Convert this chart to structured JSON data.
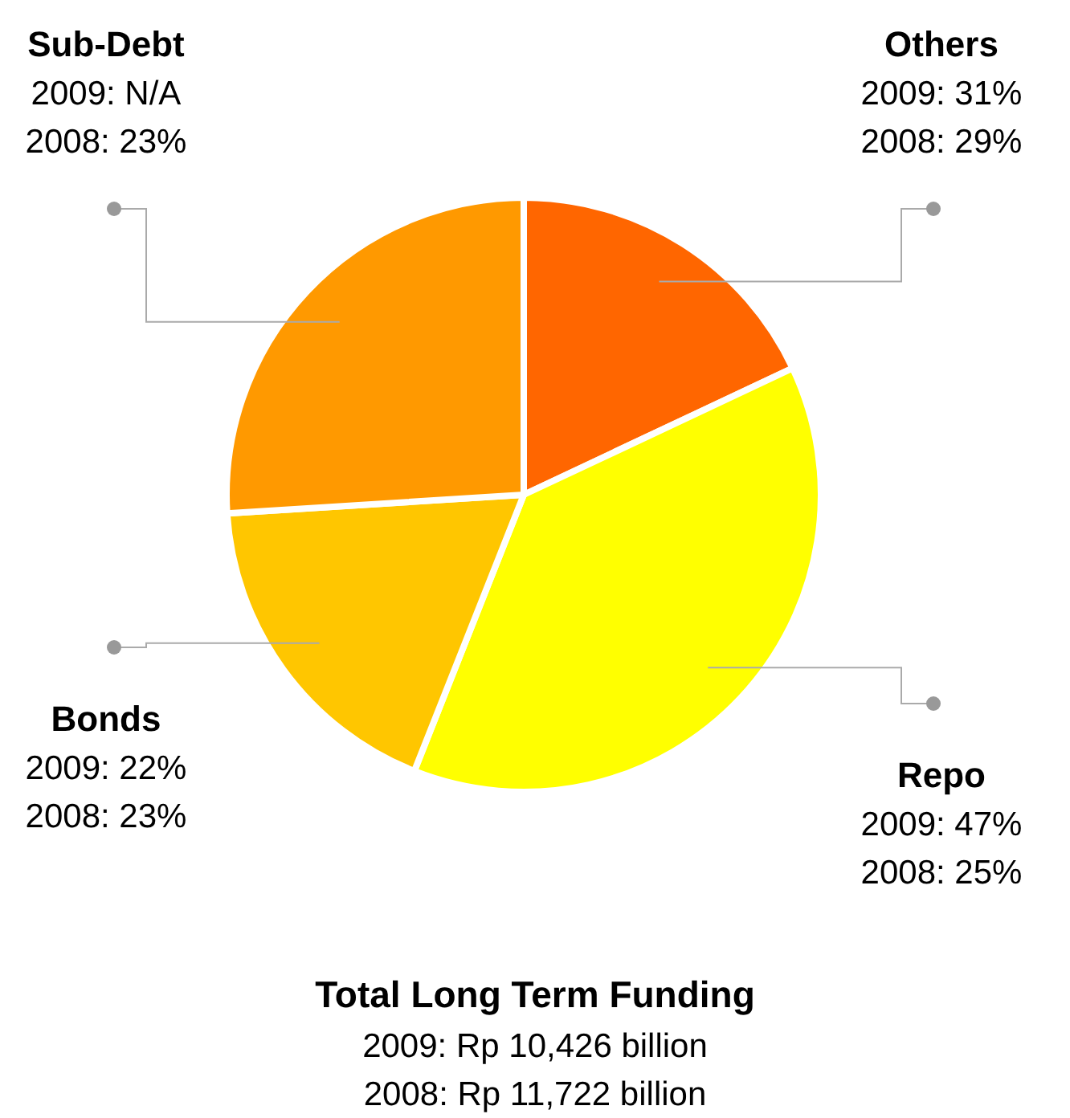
{
  "chart_data": {
    "type": "pie",
    "title": "Total Long Term Funding",
    "categories": [
      "Others",
      "Repo",
      "Bonds",
      "Sub-Debt"
    ],
    "values": [
      18,
      38,
      18,
      26
    ],
    "colors": [
      "#ff6600",
      "#ffff00",
      "#ffc600",
      "#ff9900"
    ],
    "annotations": [
      {
        "text": "2009: 31%\n2008: 29%",
        "x": "Others"
      },
      {
        "text": "2009: 47%\n2008: 25%",
        "x": "Repo"
      },
      {
        "text": "2009: 22%\n2008: 23%",
        "x": "Bonds"
      },
      {
        "text": "2009: N/A\n2008: 23%",
        "x": "Sub-Debt"
      },
      "2009: Rp 10,426 billion",
      "2008: Rp 11,722 billion"
    ],
    "legend": false
  }
}
